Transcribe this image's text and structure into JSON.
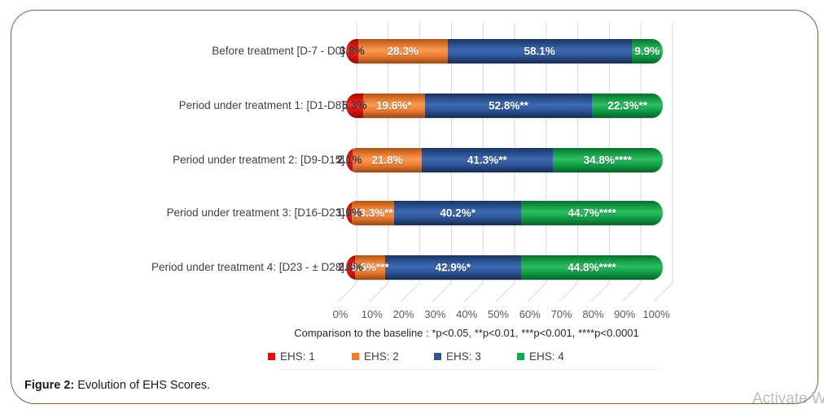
{
  "figure": {
    "caption_label": "Figure 2:",
    "caption_text": " Evolution of EHS Scores."
  },
  "watermark": "Activate W",
  "chart_data": {
    "type": "bar",
    "orientation": "horizontal",
    "stacked": true,
    "title": "",
    "xlabel": "",
    "ylabel": "",
    "xlim": [
      0,
      100
    ],
    "grid": true,
    "legend_position": "bottom",
    "categories": [
      "Before treatment [D-7 - D0]",
      "Period under treatment 1: [D1-D8]",
      "Period under treatment 2: [D9-D15]",
      "Period under treatment 3: [D16-D23]",
      "Period under treatment 4: [D23 - ± D28]"
    ],
    "series": [
      {
        "name": "EHS: 1",
        "color": "#e8120e",
        "legend_color": "#ff0000",
        "values": [
          3.8,
          5.3,
          2.1,
          1.9,
          2.8
        ],
        "labels": [
          "3.8%",
          "5.3%",
          "2.1%",
          "1.9%",
          "2.8%"
        ]
      },
      {
        "name": "EHS: 2",
        "color": "#ed7d31",
        "legend_color": "#ed7d31",
        "values": [
          28.3,
          19.6,
          21.8,
          13.3,
          9.5
        ],
        "labels": [
          "28.3%",
          "19.6%*",
          "21.8%",
          "13.3%**",
          "9.5%***"
        ]
      },
      {
        "name": "EHS: 3",
        "color": "#2e5597",
        "legend_color": "#2f5597",
        "values": [
          58.1,
          52.8,
          41.3,
          40.2,
          42.9
        ],
        "labels": [
          "58.1%",
          "52.8%**",
          "41.3%**",
          "40.2%*",
          "42.9%*"
        ]
      },
      {
        "name": "EHS: 4",
        "color": "#00b050",
        "legend_color": "#00b050",
        "values": [
          9.9,
          22.3,
          34.8,
          44.7,
          44.8
        ],
        "labels": [
          "9.9%",
          "22.3%**",
          "34.8%****",
          "44.7%****",
          "44.8%****"
        ]
      }
    ],
    "x_ticks": [
      "0%",
      "10%",
      "20%",
      "30%",
      "40%",
      "50%",
      "60%",
      "70%",
      "80%",
      "90%",
      "100%"
    ],
    "footnote": "Comparison to the baseline : *p<0.05, **p<0.01, ***p<0.001, ****p<0.0001"
  }
}
